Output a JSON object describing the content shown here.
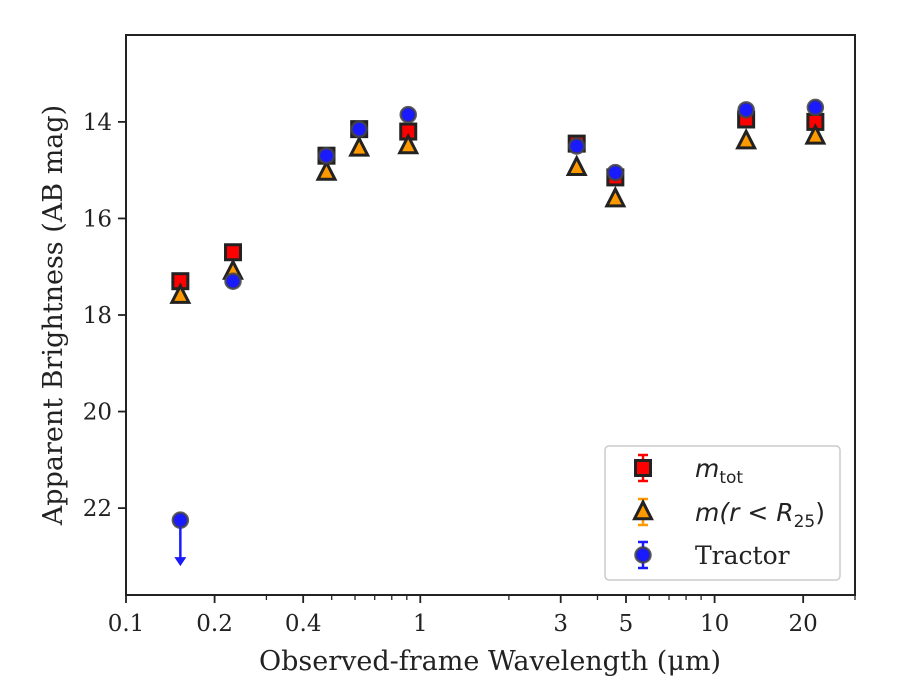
{
  "chart_data": {
    "type": "scatter",
    "title": "",
    "xlabel": "Observed-frame Wavelength (μm)",
    "ylabel": "Apparent Brightness (AB mag)",
    "xscale": "log",
    "yaxis_inverted": true,
    "xlim": [
      0.1,
      30
    ],
    "ylim": [
      23.8,
      12.2
    ],
    "x_ticks": [
      {
        "value": 0.1,
        "label": "0.1"
      },
      {
        "value": 0.2,
        "label": "0.2"
      },
      {
        "value": 0.4,
        "label": "0.4"
      },
      {
        "value": 1,
        "label": "1"
      },
      {
        "value": 3,
        "label": "3"
      },
      {
        "value": 5,
        "label": "5"
      },
      {
        "value": 10,
        "label": "10"
      },
      {
        "value": 20,
        "label": "20"
      }
    ],
    "y_ticks": [
      {
        "value": 14,
        "label": "14"
      },
      {
        "value": 16,
        "label": "16"
      },
      {
        "value": 18,
        "label": "18"
      },
      {
        "value": 20,
        "label": "20"
      },
      {
        "value": 22,
        "label": "22"
      }
    ],
    "grid": false,
    "legend_position": "lower-right",
    "series": [
      {
        "name_main": "m",
        "name_sub": "tot",
        "marker": "square",
        "color": "#ff0000",
        "edge": "#222222",
        "x": [
          0.153,
          0.231,
          0.48,
          0.62,
          0.91,
          3.4,
          4.6,
          12.8,
          22.0
        ],
        "y": [
          17.3,
          16.7,
          14.7,
          14.15,
          14.2,
          14.45,
          15.15,
          13.95,
          14.0
        ]
      },
      {
        "name_main": "m(r < R",
        "name_sub": "25",
        "name_end": ")",
        "marker": "triangle",
        "color": "#ff9900",
        "edge": "#222222",
        "x": [
          0.153,
          0.231,
          0.48,
          0.62,
          0.91,
          3.4,
          4.6,
          12.8,
          22.0
        ],
        "y": [
          17.6,
          17.1,
          15.05,
          14.55,
          14.5,
          14.95,
          15.6,
          14.4,
          14.3
        ]
      },
      {
        "name": "Tractor",
        "marker": "circle",
        "color": "#1a1aff",
        "edge": "#444444",
        "x": [
          0.153,
          0.231,
          0.48,
          0.62,
          0.91,
          3.4,
          4.6,
          12.8,
          22.0
        ],
        "y": [
          22.25,
          17.3,
          14.7,
          14.15,
          13.85,
          14.5,
          15.05,
          13.75,
          13.7
        ],
        "upper_limit": [
          true,
          false,
          false,
          false,
          false,
          false,
          false,
          false,
          false
        ]
      }
    ]
  }
}
